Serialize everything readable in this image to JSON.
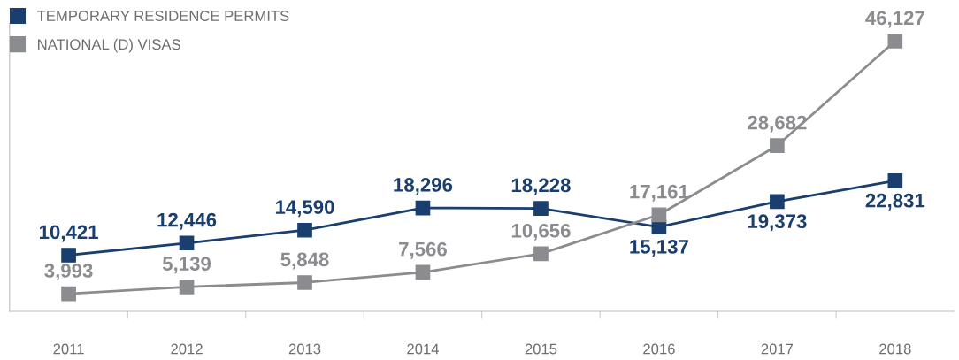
{
  "chart_data": {
    "type": "line",
    "categories": [
      "2011",
      "2012",
      "2013",
      "2014",
      "2015",
      "2016",
      "2017",
      "2018"
    ],
    "series": [
      {
        "name": "TEMPORARY RESIDENCE PERMITS",
        "color": "#1a3f6f",
        "values": [
          10421,
          12446,
          14590,
          18296,
          18228,
          15137,
          19373,
          22831
        ],
        "value_labels": [
          "10,421",
          "12,446",
          "14,590",
          "18,296",
          "18,228",
          "15,137",
          "19,373",
          "22,831"
        ]
      },
      {
        "name": "NATIONAL (D) VISAS",
        "color": "#8a8c8f",
        "values": [
          3993,
          5139,
          5848,
          7566,
          10656,
          17161,
          28682,
          46127
        ],
        "value_labels": [
          "3,993",
          "5,139",
          "5,848",
          "7,566",
          "10,656",
          "17,161",
          "28,682",
          "46,127"
        ]
      }
    ],
    "relative": false,
    "legend": "top left",
    "marker": "square",
    "line_style": "solid",
    "grid": false
  }
}
